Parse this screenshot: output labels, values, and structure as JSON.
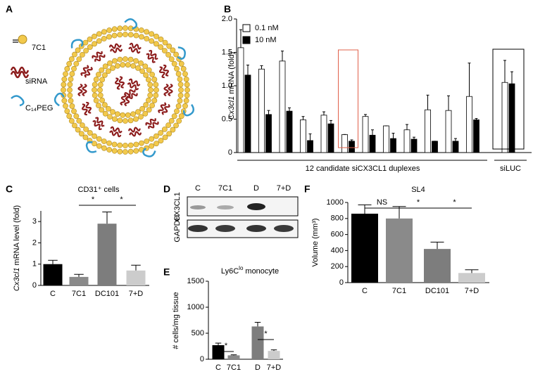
{
  "diagram": {
    "panel": "A",
    "labels": [
      "7C1",
      "siRNA",
      "C₁₄PEG"
    ]
  },
  "blot": {
    "panel": "D",
    "columns": [
      "C",
      "7C1",
      "D",
      "7+D"
    ],
    "rows": [
      "CX3CL1",
      "GAPDH"
    ]
  },
  "chart_data": [
    {
      "type": "grouped-bar",
      "panel": "B",
      "ylabel": {
        "italic": "Cx3cl1",
        "rest": "mRNA (fold)"
      },
      "categories": [
        null,
        null,
        null,
        null,
        null,
        null,
        null,
        null,
        null,
        null,
        null,
        null,
        null
      ],
      "group_labels": [
        "12 candidate siCX3CL1 duplexes",
        "siLUC"
      ],
      "series": [
        {
          "name": "0.1 nM",
          "color": "#ffffff",
          "values": [
            1.57,
            1.25,
            1.37,
            0.49,
            0.56,
            0.27,
            0.54,
            0.4,
            0.34,
            0.64,
            0.63,
            0.84,
            1.05
          ],
          "errors": [
            0.27,
            0.05,
            0.15,
            0.05,
            0.05,
            0.0,
            0.03,
            0.0,
            0.08,
            0.22,
            0.22,
            0.5,
            0.33
          ]
        },
        {
          "name": "10 nM",
          "color": "#000000",
          "values": [
            1.16,
            0.57,
            0.62,
            0.18,
            0.43,
            0.17,
            0.26,
            0.21,
            0.2,
            0.17,
            0.17,
            0.49,
            1.03
          ],
          "errors": [
            0.15,
            0.06,
            0.05,
            0.1,
            0.05,
            0.02,
            0.08,
            0.08,
            0.03,
            0.0,
            0.04,
            0.02,
            0.18
          ]
        }
      ],
      "ylim": [
        0,
        2
      ],
      "yticks": [
        0,
        0.5,
        {
          "value": 1,
          "label": "1.0"
        },
        1.5,
        {
          "value": 2,
          "label": "2.0"
        }
      ]
    },
    {
      "type": "bar",
      "panel": "C",
      "title": "CD31⁺ cells",
      "ylabel": {
        "italic": "Cx3cl1",
        "rest": "mRNA level (fold)"
      },
      "categories": [
        "C",
        "7C1",
        "DC101",
        "7+D"
      ],
      "values": [
        1.0,
        0.4,
        2.9,
        0.7
      ],
      "errors": [
        0.18,
        0.12,
        0.55,
        0.25
      ],
      "colors": [
        "#000000",
        "#8a8a8a",
        "#7d7d7d",
        "#cccccc"
      ],
      "annotations": [
        "*",
        "*"
      ],
      "ylim": [
        0,
        3.5
      ],
      "yticks": [
        0,
        1,
        2,
        3
      ]
    },
    {
      "type": "bar",
      "panel": "E",
      "title": {
        "main": "Ly6C",
        "sup": "lo",
        "rest": "monocyte"
      },
      "ylabel": "# cells/mg tissue",
      "categories": [
        "C",
        "7C1",
        "D",
        "7+D"
      ],
      "values": [
        270,
        75,
        630,
        160
      ],
      "errors": [
        40,
        10,
        80,
        20
      ],
      "colors": [
        "#000000",
        "#8a8a8a",
        "#7d7d7d",
        "#cccccc"
      ],
      "annotations": [
        "*",
        "*"
      ],
      "ylim": [
        0,
        1500
      ],
      "yticks": [
        0,
        500,
        1000,
        1500
      ]
    },
    {
      "type": "bar",
      "panel": "F",
      "title": "SL4",
      "ylabel": "Volume (mm³)",
      "categories": [
        "C",
        "7C1",
        "DC101",
        "7+D"
      ],
      "values": [
        860,
        800,
        420,
        120
      ],
      "errors": [
        110,
        150,
        85,
        40
      ],
      "colors": [
        "#000000",
        "#8a8a8a",
        "#7d7d7d",
        "#cccccc"
      ],
      "annotations": [
        "NS",
        "*",
        "*"
      ],
      "ylim": [
        0,
        1000
      ],
      "yticks": [
        0,
        200,
        400,
        600,
        800,
        1000
      ]
    }
  ]
}
